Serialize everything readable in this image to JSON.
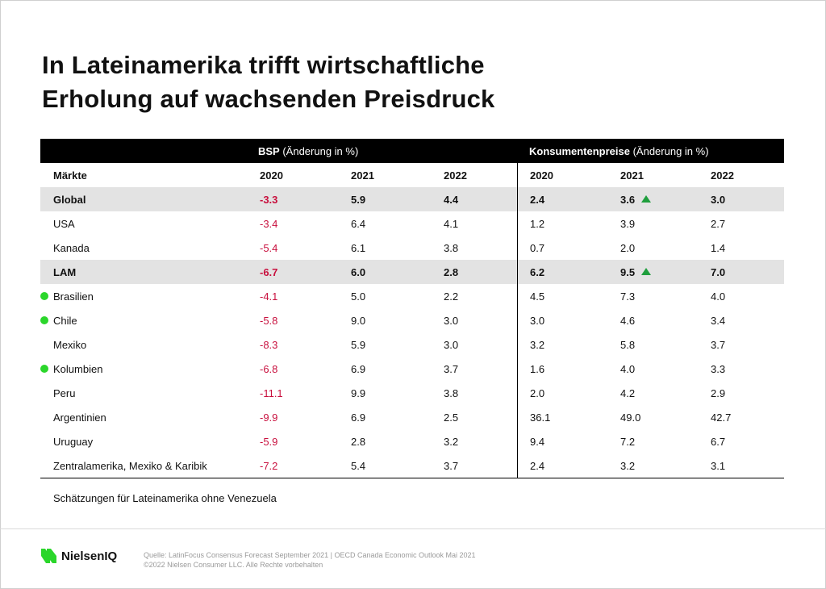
{
  "title": {
    "line1": "In Lateinamerika trifft wirtschaftliche",
    "line2": "Erholung auf wachsenden Preisdruck"
  },
  "table": {
    "group_bsp_bold": "BSP",
    "group_bsp_rest": " (Änderung in %)",
    "group_cpi_bold": "Konsumentenpreise",
    "group_cpi_rest": " (Änderung in %)",
    "header": [
      "Märkte",
      "2020",
      "2021",
      "2022",
      "2020",
      "2021",
      "2022"
    ],
    "rows": [
      {
        "market": "Global",
        "bsp2020": "-3.3",
        "bsp2021": "5.9",
        "bsp2022": "4.4",
        "cpi2020": "2.4",
        "cpi2021": "3.6",
        "cpi2022": "3.0"
      },
      {
        "market": "USA",
        "bsp2020": "-3.4",
        "bsp2021": "6.4",
        "bsp2022": "4.1",
        "cpi2020": "1.2",
        "cpi2021": "3.9",
        "cpi2022": "2.7"
      },
      {
        "market": "Kanada",
        "bsp2020": "-5.4",
        "bsp2021": "6.1",
        "bsp2022": "3.8",
        "cpi2020": "0.7",
        "cpi2021": "2.0",
        "cpi2022": "1.4"
      },
      {
        "market": "LAM",
        "bsp2020": "-6.7",
        "bsp2021": "6.0",
        "bsp2022": "2.8",
        "cpi2020": "6.2",
        "cpi2021": "9.5",
        "cpi2022": "7.0"
      },
      {
        "market": "Brasilien",
        "bsp2020": "-4.1",
        "bsp2021": "5.0",
        "bsp2022": "2.2",
        "cpi2020": "4.5",
        "cpi2021": "7.3",
        "cpi2022": "4.0"
      },
      {
        "market": "Chile",
        "bsp2020": "-5.8",
        "bsp2021": "9.0",
        "bsp2022": "3.0",
        "cpi2020": "3.0",
        "cpi2021": "4.6",
        "cpi2022": "3.4"
      },
      {
        "market": "Mexiko",
        "bsp2020": "-8.3",
        "bsp2021": "5.9",
        "bsp2022": "3.0",
        "cpi2020": "3.2",
        "cpi2021": "5.8",
        "cpi2022": "3.7"
      },
      {
        "market": "Kolumbien",
        "bsp2020": "-6.8",
        "bsp2021": "6.9",
        "bsp2022": "3.7",
        "cpi2020": "1.6",
        "cpi2021": "4.0",
        "cpi2022": "3.3"
      },
      {
        "market": "Peru",
        "bsp2020": "-11.1",
        "bsp2021": "9.9",
        "bsp2022": "3.8",
        "cpi2020": "2.0",
        "cpi2021": "4.2",
        "cpi2022": "2.9"
      },
      {
        "market": "Argentinien",
        "bsp2020": "-9.9",
        "bsp2021": "6.9",
        "bsp2022": "2.5",
        "cpi2020": "36.1",
        "cpi2021": "49.0",
        "cpi2022": "42.7"
      },
      {
        "market": "Uruguay",
        "bsp2020": "-5.9",
        "bsp2021": "2.8",
        "bsp2022": "3.2",
        "cpi2020": "9.4",
        "cpi2021": "7.2",
        "cpi2022": "6.7"
      },
      {
        "market": "Zentralamerika, Mexiko & Karibik",
        "bsp2020": "-7.2",
        "bsp2021": "5.4",
        "bsp2022": "3.7",
        "cpi2020": "2.4",
        "cpi2021": "3.2",
        "cpi2022": "3.1"
      }
    ],
    "highlighted_rows": [
      "Global",
      "LAM"
    ],
    "green_dot_markets": [
      "Brasilien",
      "Chile",
      "Kolumbien"
    ],
    "up_arrow_cells": [
      "Global 2021 Konsumentenpreise",
      "LAM 2021 Konsumentenpreise"
    ]
  },
  "note": "Schätzungen für Lateinamerika ohne Venezuela",
  "footer": {
    "logo_text": "NielsenIQ",
    "source_line1": "Quelle: LatinFocus Consensus Forecast September 2021 | OECD Canada Economic Outlook Mai 2021",
    "source_line2": "©2022 Nielsen Consumer LLC. Alle Rechte vorbehalten"
  },
  "colors": {
    "negative": "#c8103e",
    "highlight_row": "#e3e3e3",
    "header_band": "#000000",
    "green_dot": "#2bd62b",
    "up_arrow": "#1f9e3d",
    "logo_green": "#2bd62b"
  }
}
